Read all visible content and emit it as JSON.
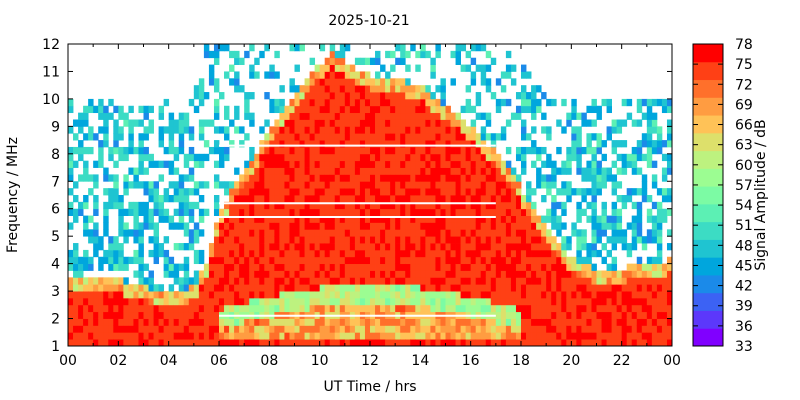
{
  "chart_data": {
    "type": "heatmap",
    "title": "2025-10-21",
    "xlabel": "UT Time / hrs",
    "ylabel": "Frequency / MHz",
    "xlim": [
      0,
      24
    ],
    "ylim": [
      1,
      12
    ],
    "x_ticks": [
      "00",
      "02",
      "04",
      "06",
      "08",
      "10",
      "12",
      "14",
      "16",
      "18",
      "20",
      "22",
      "00"
    ],
    "y_ticks": [
      "1",
      "2",
      "3",
      "4",
      "5",
      "6",
      "7",
      "8",
      "9",
      "10",
      "11",
      "12"
    ],
    "colorbar": {
      "label": "Signal Amplitude / dB",
      "range": [
        33,
        78
      ],
      "ticks": [
        "33",
        "36",
        "39",
        "42",
        "45",
        "48",
        "51",
        "54",
        "57",
        "60",
        "63",
        "66",
        "69",
        "72",
        "75",
        "78"
      ],
      "colors": [
        "#8000ff",
        "#5c38fb",
        "#3c62f4",
        "#1b8ae9",
        "#00a6dd",
        "#1fc4d1",
        "#3cdcc4",
        "#5cf0b4",
        "#7cfba4",
        "#9cfd92",
        "#bdf27f",
        "#dde06b",
        "#ffc257",
        "#ff9c41",
        "#ff702b",
        "#ff4015",
        "#ff0000"
      ]
    },
    "profile": {
      "hours": [
        0,
        1,
        2,
        3,
        4,
        5,
        5.5,
        6,
        7,
        8,
        9,
        10,
        10.5,
        11,
        12,
        13,
        14,
        15,
        16,
        17,
        18,
        19,
        20,
        21,
        22,
        23,
        24
      ],
      "strong_top_mhz": [
        3.3,
        3.4,
        3.3,
        3.0,
        2.9,
        3.0,
        3.8,
        5.8,
        7.2,
        8.7,
        9.9,
        11.1,
        11.6,
        11.2,
        10.7,
        10.6,
        10.3,
        9.6,
        8.9,
        7.9,
        6.6,
        5.3,
        4.1,
        3.6,
        3.7,
        3.8,
        4.0
      ],
      "noise_top_mhz": [
        10.0,
        10.0,
        10.0,
        10.0,
        10.0,
        10.0,
        12.0,
        12.0,
        12.0,
        12.0,
        12.0,
        12.0,
        12.0,
        12.0,
        12.0,
        12.0,
        12.0,
        12.0,
        12.0,
        12.0,
        12.0,
        10.0,
        10.0,
        10.0,
        10.0,
        10.0,
        10.0
      ]
    },
    "gap_lines_mhz": [
      2.1,
      5.7,
      6.2,
      8.3
    ],
    "max_db": 78,
    "noise_db": 45
  }
}
